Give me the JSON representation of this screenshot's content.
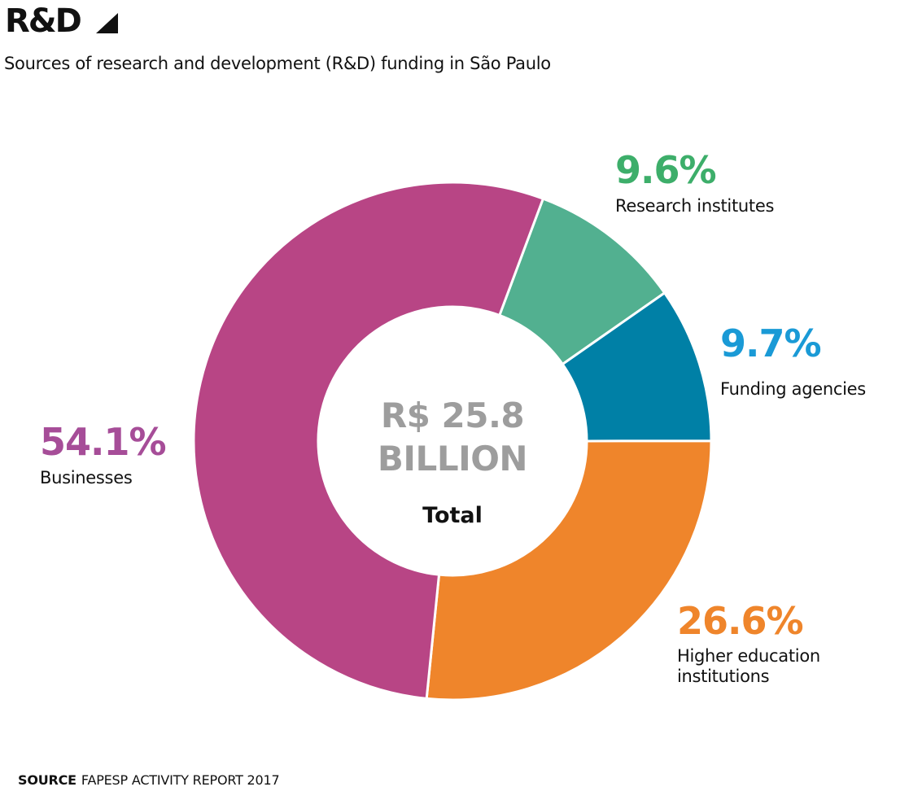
{
  "header": {
    "title": "R&D",
    "title_icon": "triangle-icon",
    "subtitle": "Sources of research and development (R&D) funding in São Paulo"
  },
  "footer": {
    "source_label": "SOURCE",
    "source_text": "FAPESP ACTIVITY REPORT 2017"
  },
  "colors": {
    "businesses": "#b84585",
    "research_institutes": "#52b090",
    "funding_agencies": "#0080a6",
    "higher_education": "#ef852b",
    "research_institutes_label": "#3dae6a",
    "funding_agencies_label": "#1a9ad6",
    "businesses_label": "#a64d98",
    "higher_education_label": "#ef852b",
    "center_value": "#9d9d9d"
  },
  "chart_data": {
    "type": "pie",
    "variant": "donut",
    "title": "R&D",
    "subtitle": "Sources of research and development (R&D) funding in São Paulo",
    "center_text": [
      "R$ 25.8",
      "BILLION"
    ],
    "center_label": "Total",
    "total": "R$ 25.8 billion",
    "unit": "%",
    "start_angle_deg": 20.5,
    "direction": "clockwise",
    "slices": [
      {
        "name": "Research institutes",
        "value": 9.6,
        "label": "9.6%",
        "color": "#52b090",
        "label_color": "#3dae6a",
        "label_lines": [
          "Research institutes"
        ]
      },
      {
        "name": "Funding agencies",
        "value": 9.7,
        "label": "9.7%",
        "color": "#0080a6",
        "label_color": "#1a9ad6",
        "label_lines": [
          "Funding agencies"
        ]
      },
      {
        "name": "Higher education institutions",
        "value": 26.6,
        "label": "26.6%",
        "color": "#ef852b",
        "label_color": "#ef852b",
        "label_lines": [
          "Higher education",
          "institutions"
        ]
      },
      {
        "name": "Businesses",
        "value": 54.1,
        "label": "54.1%",
        "color": "#b84585",
        "label_color": "#a64d98",
        "label_lines": [
          "Businesses"
        ]
      }
    ],
    "source": "FAPESP ACTIVITY REPORT 2017"
  }
}
